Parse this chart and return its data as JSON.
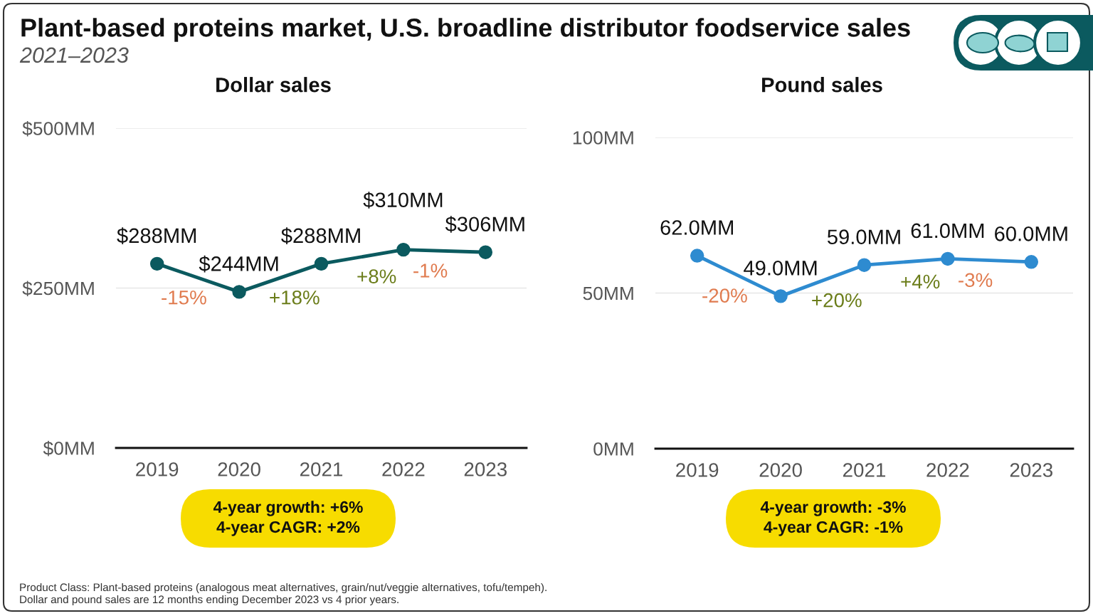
{
  "chart_data": [
    {
      "type": "other",
      "title": "Plant-based proteins market, U.S. broadline distributor foodservice sales",
      "subtitle": "2021–2023",
      "annotations": [
        "Product Class: Plant-based proteins (analogous meat alternatives, grain/nut/veggie alternatives, tofu/tempeh).",
        "Dollar and pound sales are 12 months ending December 2023 vs 4 prior years."
      ]
    },
    {
      "type": "line",
      "title": "Dollar sales",
      "categories": [
        "2019",
        "2020",
        "2021",
        "2022",
        "2023"
      ],
      "series": [
        {
          "color": "#0b5a5f",
          "values": [
            288,
            244,
            288,
            310,
            306
          ],
          "value_labels": [
            "$288MM",
            "$244MM",
            "$288MM",
            "$310MM",
            "$306MM"
          ]
        }
      ],
      "ylim": [
        0,
        500
      ],
      "yticks": [
        {
          "value": 0,
          "label": "$0MM"
        },
        {
          "value": 250,
          "label": "$250MM"
        },
        {
          "value": 500,
          "label": "$500MM"
        }
      ],
      "grid": "y",
      "marker": "circle",
      "line_style": "solid",
      "annotations": [
        "-15%",
        "+18%",
        "+8%",
        "-1%",
        "4-year growth: +6%",
        "4-year CAGR: +2%"
      ]
    },
    {
      "type": "line",
      "title": "Pound sales",
      "categories": [
        "2019",
        "2020",
        "2021",
        "2022",
        "2023"
      ],
      "series": [
        {
          "color": "#2e8bd0",
          "values": [
            62,
            49,
            59,
            61,
            60
          ],
          "value_labels": [
            "62.0MM",
            "49.0MM",
            "59.0MM",
            "61.0MM",
            "60.0MM"
          ]
        }
      ],
      "ylim": [
        0,
        100
      ],
      "yticks": [
        {
          "value": 0,
          "label": "0MM"
        },
        {
          "value": 50,
          "label": "50MM"
        },
        {
          "value": 100,
          "label": "100MM"
        }
      ],
      "grid": "y",
      "marker": "circle",
      "line_style": "solid",
      "annotations": [
        "-20%",
        "+20%",
        "+4%",
        "-3%",
        "4-year growth: -3%",
        "4-year CAGR: -1%"
      ]
    }
  ]
}
